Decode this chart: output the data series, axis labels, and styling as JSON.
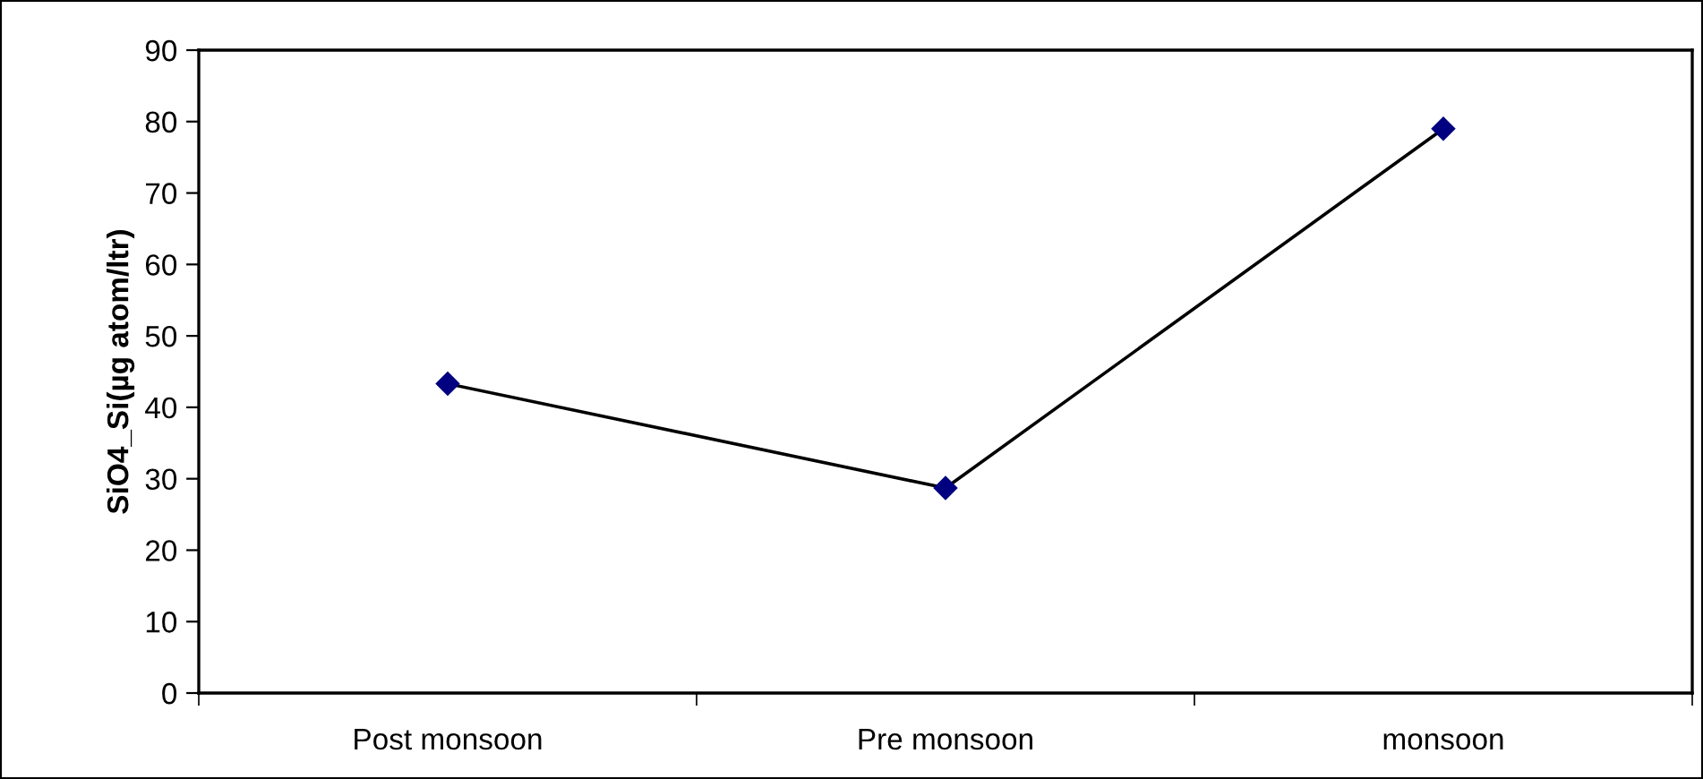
{
  "chart_data": {
    "type": "line",
    "ylabel": "SiO4_Si(µg atom/ltr)",
    "categories": [
      "Post monsoon",
      "Pre monsoon",
      "monsoon"
    ],
    "series": [
      {
        "color": "#000080",
        "values": [
          43.3,
          28.7,
          79.0
        ]
      }
    ],
    "ylim": [
      0,
      90
    ],
    "yticks": [
      0,
      10,
      20,
      30,
      40,
      50,
      60,
      70,
      80,
      90
    ],
    "marker": "diamond",
    "line_style": "solid",
    "grid": false,
    "legend": false
  }
}
